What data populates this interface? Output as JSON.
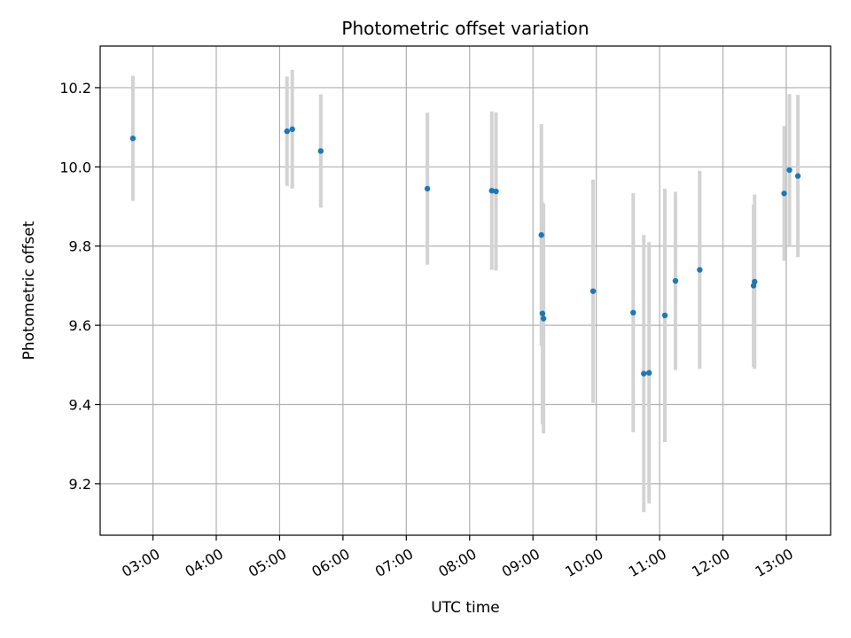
{
  "chart_data": {
    "type": "scatter",
    "title": "Photometric offset variation",
    "xlabel": "UTC time",
    "ylabel": "Photometric offset",
    "x_unit": "UTC time of day (HH:MM)",
    "xlim": [
      "02:10",
      "13:42"
    ],
    "ylim": [
      9.07,
      10.305
    ],
    "x_ticks": [
      "03:00",
      "04:00",
      "05:00",
      "06:00",
      "07:00",
      "08:00",
      "09:00",
      "10:00",
      "11:00",
      "12:00",
      "13:00"
    ],
    "y_ticks": [
      9.2,
      9.4,
      9.6,
      9.8,
      10.0,
      10.2
    ],
    "y_tick_labels": [
      "9.2",
      "9.4",
      "9.6",
      "9.8",
      "10.0",
      "10.2"
    ],
    "grid": true,
    "legend": false,
    "point_color": "#1f77b4",
    "errorbar_color": "#d3d3d3",
    "points": [
      {
        "x": "02:41",
        "y": 10.072,
        "err": 0.158
      },
      {
        "x": "05:07",
        "y": 10.09,
        "err": 0.138
      },
      {
        "x": "05:12",
        "y": 10.095,
        "err": 0.15
      },
      {
        "x": "05:39",
        "y": 10.04,
        "err": 0.143
      },
      {
        "x": "07:20",
        "y": 9.945,
        "err": 0.192
      },
      {
        "x": "08:21",
        "y": 9.94,
        "err": 0.2
      },
      {
        "x": "08:25",
        "y": 9.938,
        "err": 0.2
      },
      {
        "x": "09:08",
        "y": 9.828,
        "err": 0.28
      },
      {
        "x": "09:09",
        "y": 9.63,
        "err": 0.28
      },
      {
        "x": "09:10",
        "y": 9.617,
        "err": 0.29
      },
      {
        "x": "09:57",
        "y": 9.686,
        "err": 0.282
      },
      {
        "x": "10:35",
        "y": 9.632,
        "err": 0.302
      },
      {
        "x": "10:45",
        "y": 9.478,
        "err": 0.35
      },
      {
        "x": "10:50",
        "y": 9.48,
        "err": 0.33
      },
      {
        "x": "11:05",
        "y": 9.625,
        "err": 0.32
      },
      {
        "x": "11:15",
        "y": 9.712,
        "err": 0.225
      },
      {
        "x": "11:38",
        "y": 9.74,
        "err": 0.25
      },
      {
        "x": "12:29",
        "y": 9.7,
        "err": 0.205
      },
      {
        "x": "12:30",
        "y": 9.71,
        "err": 0.22
      },
      {
        "x": "12:58",
        "y": 9.933,
        "err": 0.17
      },
      {
        "x": "13:03",
        "y": 9.992,
        "err": 0.192
      },
      {
        "x": "13:11",
        "y": 9.977,
        "err": 0.205
      }
    ]
  }
}
